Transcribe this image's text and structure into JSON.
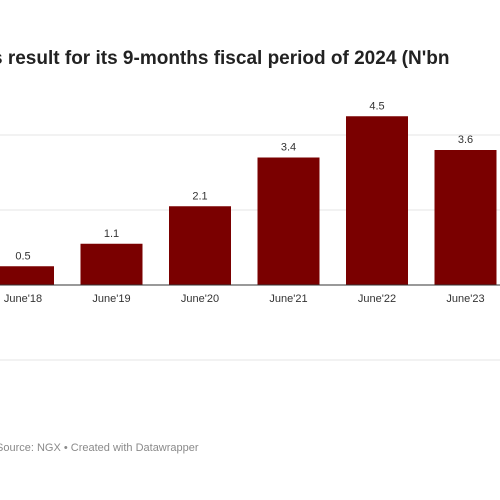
{
  "header": {
    "title": "s result for its 9-months fiscal period of 2024 (N'bn"
  },
  "footer": {
    "source_text": "Source: NGX • Created with Datawrapper"
  },
  "colors": {
    "bar": "#7a0000",
    "grid": "#e6e6e6",
    "axis": "#333333"
  },
  "chart_data": {
    "type": "bar",
    "title": "s result for its 9-months fiscal period of 2024 (N'bn",
    "categories": [
      "June'18",
      "June'19",
      "June'20",
      "June'21",
      "June'22",
      "June'23"
    ],
    "values": [
      0.5,
      1.1,
      2.1,
      3.4,
      4.5,
      3.6
    ],
    "data_labels": [
      "0.5",
      "1.1",
      "2.1",
      "3.4",
      "4.5",
      "3.6"
    ],
    "xlabel": "",
    "ylabel": "",
    "ylim": [
      -2,
      5
    ],
    "grid": true,
    "legend": "none"
  }
}
